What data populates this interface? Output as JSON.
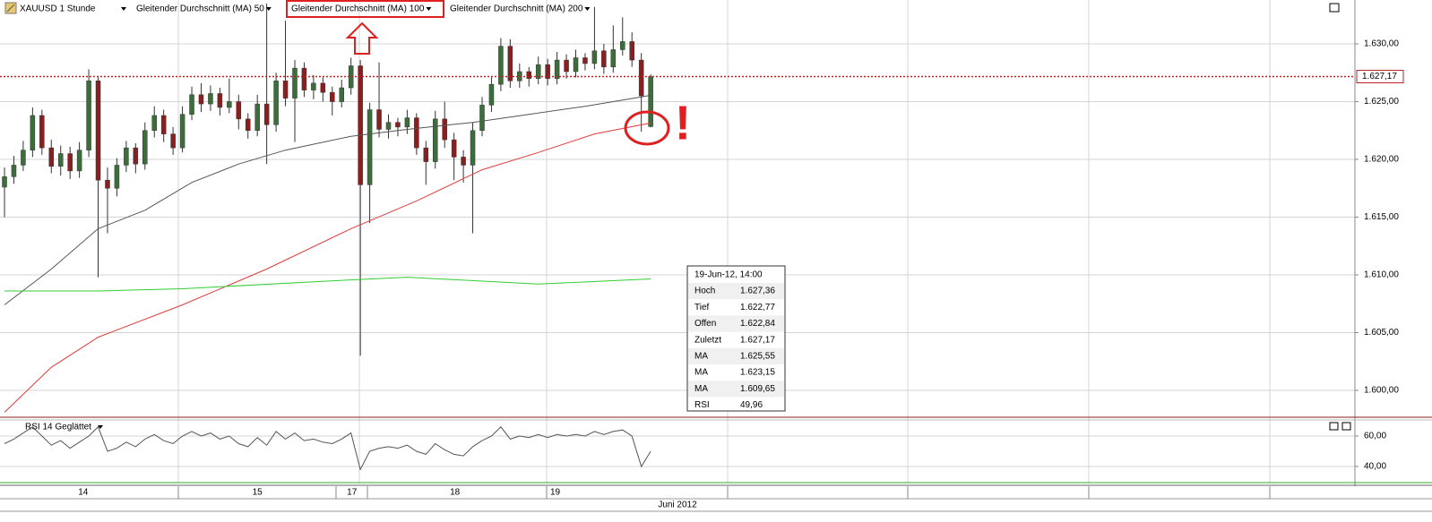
{
  "chart_data": [
    {
      "type": "candlestick",
      "title": "XAUUSD 1 Stunde",
      "x": [
        0,
        1,
        2,
        3,
        4,
        5,
        6,
        7,
        8,
        9,
        10,
        11,
        12,
        13,
        14,
        15,
        16,
        17,
        18,
        19,
        20,
        21,
        22,
        23,
        24,
        25,
        26,
        27,
        28,
        29,
        30,
        31,
        32,
        33,
        34,
        35,
        36,
        37,
        38,
        39,
        40,
        41,
        42,
        43,
        44,
        45,
        46,
        47,
        48,
        49,
        50,
        51,
        52,
        53,
        54,
        55,
        56,
        57,
        58,
        59,
        60,
        61,
        62,
        63,
        64,
        65,
        66,
        67,
        68,
        69
      ],
      "open": [
        1617.6,
        1618.5,
        1619.5,
        1620.8,
        1623.8,
        1621.0,
        1619.4,
        1620.5,
        1619.0,
        1620.8,
        1626.8,
        1618.2,
        1617.5,
        1619.5,
        1621.0,
        1619.6,
        1622.5,
        1623.8,
        1622.2,
        1621.0,
        1623.9,
        1625.6,
        1624.8,
        1625.7,
        1624.5,
        1625.0,
        1623.5,
        1622.5,
        1624.8,
        1623.0,
        1626.8,
        1625.3,
        1627.9,
        1626.0,
        1626.6,
        1625.8,
        1625.0,
        1626.2,
        1628.1,
        1617.8,
        1624.3,
        1622.6,
        1623.2,
        1622.8,
        1623.6,
        1621.0,
        1619.8,
        1623.5,
        1621.7,
        1620.2,
        1619.5,
        1622.5,
        1624.7,
        1626.5,
        1629.8,
        1626.8,
        1627.6,
        1627.0,
        1628.2,
        1627.0,
        1628.6,
        1627.6,
        1628.8,
        1628.3,
        1629.4,
        1628.0,
        1629.5,
        1630.2,
        1628.6,
        1622.84
      ],
      "high": [
        1619.3,
        1620.3,
        1621.6,
        1624.5,
        1624.3,
        1621.7,
        1621.2,
        1621.1,
        1621.5,
        1627.8,
        1627.1,
        1619.3,
        1620.1,
        1621.6,
        1621.4,
        1623.2,
        1624.6,
        1624.3,
        1622.8,
        1624.6,
        1626.3,
        1626.6,
        1626.4,
        1626.2,
        1627.0,
        1625.6,
        1624.0,
        1625.6,
        1633.5,
        1627.5,
        1632.0,
        1628.6,
        1628.4,
        1627.3,
        1627.1,
        1626.3,
        1626.9,
        1628.8,
        1628.6,
        1624.9,
        1628.4,
        1623.9,
        1623.6,
        1624.3,
        1624.0,
        1621.6,
        1624.2,
        1625.0,
        1622.3,
        1620.8,
        1623.2,
        1625.4,
        1627.2,
        1630.5,
        1630.4,
        1628.3,
        1628.0,
        1628.9,
        1628.7,
        1629.3,
        1629.1,
        1629.5,
        1629.2,
        1633.2,
        1630.0,
        1631.6,
        1632.3,
        1631.0,
        1629.2,
        1627.36
      ],
      "low": [
        1615.0,
        1617.9,
        1619.0,
        1620.2,
        1620.4,
        1618.8,
        1618.6,
        1618.3,
        1618.4,
        1620.2,
        1609.8,
        1613.6,
        1616.8,
        1618.9,
        1618.8,
        1619.1,
        1621.9,
        1621.5,
        1620.4,
        1620.6,
        1623.4,
        1624.1,
        1624.2,
        1623.8,
        1624.0,
        1622.6,
        1621.8,
        1622.0,
        1619.6,
        1622.4,
        1624.6,
        1621.5,
        1625.4,
        1625.2,
        1625.0,
        1623.8,
        1624.5,
        1625.6,
        1603.0,
        1614.5,
        1621.9,
        1621.8,
        1622.0,
        1622.2,
        1620.4,
        1617.8,
        1619.2,
        1621.0,
        1618.2,
        1618.0,
        1613.6,
        1622.0,
        1624.1,
        1625.9,
        1626.2,
        1626.2,
        1626.3,
        1626.5,
        1626.4,
        1626.5,
        1627.0,
        1627.1,
        1627.7,
        1627.8,
        1627.4,
        1627.5,
        1629.0,
        1628.0,
        1622.4,
        1622.77
      ],
      "close": [
        1618.5,
        1619.5,
        1620.8,
        1623.8,
        1621.0,
        1619.4,
        1620.5,
        1619.0,
        1620.8,
        1626.8,
        1618.2,
        1617.5,
        1619.5,
        1621.0,
        1619.6,
        1622.5,
        1623.8,
        1622.2,
        1621.0,
        1623.9,
        1625.6,
        1624.8,
        1625.7,
        1624.5,
        1625.0,
        1623.5,
        1622.5,
        1624.8,
        1623.0,
        1626.8,
        1625.3,
        1627.9,
        1626.0,
        1626.6,
        1625.8,
        1625.0,
        1626.2,
        1628.1,
        1617.8,
        1624.3,
        1622.6,
        1623.2,
        1622.8,
        1623.6,
        1621.0,
        1619.8,
        1623.5,
        1621.7,
        1620.2,
        1619.5,
        1622.5,
        1624.7,
        1626.5,
        1629.8,
        1626.8,
        1627.6,
        1627.0,
        1628.2,
        1627.0,
        1628.6,
        1627.6,
        1628.8,
        1628.3,
        1629.4,
        1628.0,
        1629.5,
        1630.2,
        1628.6,
        1625.5,
        1627.17
      ],
      "up_color": "#3c6e3c",
      "down_color": "#8a1f1f",
      "series": [
        {
          "name": "Gleitender Durchschnitt (MA) 50",
          "color": "#555555",
          "x": [
            0,
            5,
            10,
            15,
            20,
            25,
            30,
            37,
            43,
            50,
            56,
            62,
            68,
            69
          ],
          "values": [
            1607.4,
            1610.5,
            1614.0,
            1615.6,
            1618.0,
            1619.6,
            1620.8,
            1622.0,
            1622.6,
            1623.2,
            1623.9,
            1624.6,
            1625.4,
            1625.55
          ]
        },
        {
          "name": "Gleitender Durchschnitt (MA) 100",
          "color": "#e03a3a",
          "x": [
            0,
            5,
            10,
            19,
            28,
            37,
            44,
            51,
            57,
            63,
            69
          ],
          "values": [
            1598.1,
            1602.0,
            1604.6,
            1607.4,
            1610.5,
            1614.0,
            1616.4,
            1619.1,
            1620.6,
            1622.2,
            1623.15
          ]
        },
        {
          "name": "Gleitender Durchschnitt (MA) 200",
          "color": "#33cc33",
          "x": [
            0,
            10,
            19,
            33,
            43,
            57,
            69
          ],
          "values": [
            1608.6,
            1608.6,
            1608.8,
            1609.4,
            1609.8,
            1609.2,
            1609.65
          ]
        }
      ],
      "xlim": [
        -0.48,
        144.2
      ],
      "xticks": [
        {
          "value": 8.4,
          "label": "14"
        },
        {
          "value": 27,
          "label": "15"
        },
        {
          "value": 37.1,
          "label": "17"
        },
        {
          "value": 48.1,
          "label": "18"
        },
        {
          "value": 58.8,
          "label": "19"
        }
      ],
      "xlabel": "Juni 2012",
      "ylim": [
        1597.75,
        1633.8
      ],
      "yticks": [
        {
          "value": 1600,
          "label": "1.600,00"
        },
        {
          "value": 1605,
          "label": "1.605,00"
        },
        {
          "value": 1610,
          "label": "1.610,00"
        },
        {
          "value": 1615,
          "label": "1.615,00"
        },
        {
          "value": 1620,
          "label": "1.620,00"
        },
        {
          "value": 1625,
          "label": "1.625,00"
        },
        {
          "value": 1630,
          "label": "1.630,00"
        }
      ],
      "grid": true,
      "last_price": {
        "value": 1627.17,
        "label": "1.627,17"
      },
      "annotation": "!",
      "tooltip": {
        "title": "19-Jun-12, 14:00",
        "rows": [
          {
            "label": "Hoch",
            "value": "1.627,36",
            "color": "#000000"
          },
          {
            "label": "Tief",
            "value": "1.622,77",
            "color": "#000000"
          },
          {
            "label": "Offen",
            "value": "1.622,84",
            "color": "#000000"
          },
          {
            "label": "Zuletzt",
            "value": "1.627,17",
            "color": "#cc2222",
            "label_color": "#000000"
          },
          {
            "label": "MA",
            "value": "1.625,55",
            "color": "#000000"
          },
          {
            "label": "MA",
            "value": "1.623,15",
            "color": "#cc2222"
          },
          {
            "label": "MA",
            "value": "1.609,65",
            "color": "#33cc33"
          },
          {
            "label": "RSI",
            "value": "49,96",
            "color": "#000000"
          }
        ]
      }
    },
    {
      "type": "line",
      "title": "RSI 14 Geglättet",
      "color": "#555555",
      "x": [
        0,
        1,
        2,
        3,
        4,
        5,
        6,
        7,
        8,
        9,
        10,
        11,
        12,
        13,
        14,
        15,
        16,
        17,
        18,
        19,
        20,
        21,
        22,
        23,
        24,
        25,
        26,
        27,
        28,
        29,
        30,
        31,
        32,
        33,
        34,
        35,
        36,
        37,
        38,
        39,
        40,
        41,
        42,
        43,
        44,
        45,
        46,
        47,
        48,
        49,
        50,
        51,
        52,
        53,
        54,
        55,
        56,
        57,
        58,
        59,
        60,
        61,
        62,
        63,
        64,
        65,
        66,
        67,
        68,
        69
      ],
      "values": [
        55,
        58,
        62,
        66,
        60,
        54,
        57,
        52,
        56,
        60,
        66,
        50,
        52,
        56,
        53,
        58,
        61,
        57,
        55,
        60,
        63,
        60,
        62,
        58,
        60,
        55,
        53,
        59,
        54,
        63,
        58,
        62,
        57,
        58,
        56,
        55,
        58,
        62,
        38,
        50,
        52,
        53,
        52,
        54,
        50,
        48,
        55,
        51,
        48,
        47,
        53,
        57,
        60,
        66,
        58,
        60,
        59,
        61,
        59,
        61,
        60,
        61,
        60,
        63,
        61,
        63,
        64,
        60,
        40,
        49.96
      ],
      "xlim": [
        -0.48,
        144.2
      ],
      "ylim": [
        28.8,
        71.2
      ],
      "yticks": [
        {
          "value": 40,
          "label": "40,00"
        },
        {
          "value": 60,
          "label": "60,00"
        }
      ],
      "grid": true
    }
  ]
}
